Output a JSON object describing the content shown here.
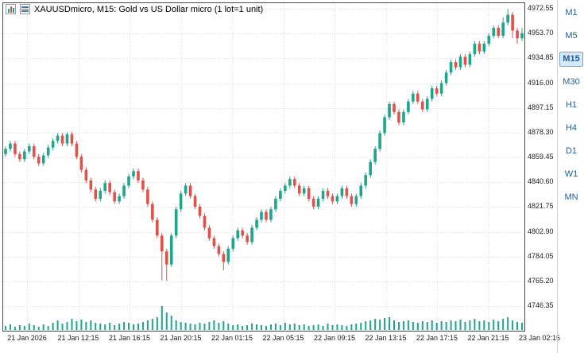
{
  "window": {
    "title": "XAUUSDmicro, M15:  Gold vs US Dollar micro (1 lot=1 unit)"
  },
  "header_icons": [
    {
      "name": "candlestick-icon"
    },
    {
      "name": "list-icon"
    }
  ],
  "timeframes": {
    "items": [
      {
        "label": "M1",
        "selected": false
      },
      {
        "label": "M5",
        "selected": false
      },
      {
        "label": "M15",
        "selected": true
      },
      {
        "label": "M30",
        "selected": false
      },
      {
        "label": "H1",
        "selected": false
      },
      {
        "label": "H4",
        "selected": false
      },
      {
        "label": "D1",
        "selected": false
      },
      {
        "label": "W1",
        "selected": false
      },
      {
        "label": "MN",
        "selected": false
      }
    ]
  },
  "chart_data": {
    "type": "candlestick",
    "symbol": "XAUUSDmicro",
    "timeframe": "M15",
    "description": "Gold vs US Dollar micro (1 lot=1 unit)",
    "y_axis": {
      "max": 4972.55,
      "min": 4746.35,
      "labels": [
        "4972.55",
        "4953.70",
        "4934.85",
        "4916.00",
        "4897.15",
        "4878.30",
        "4859.45",
        "4840.60",
        "4821.75",
        "4802.90",
        "4784.05",
        "4765.20",
        "4746.35"
      ]
    },
    "x_axis": {
      "labels": [
        "21 Jan 2026",
        "21 Jan 12:15",
        "21 Jan 16:15",
        "21 Jan 20:15",
        "22 Jan 01:15",
        "22 Jan 05:15",
        "22 Jan 09:15",
        "22 Jan 13:15",
        "22 Jan 17:15",
        "22 Jan 21:15",
        "23 Jan 02:15"
      ]
    },
    "colors": {
      "up": "#1ea58c",
      "down": "#e05249",
      "volume": "#1ea58c",
      "grid": "#dedede",
      "border": "#4a4a4a",
      "timeframe_text": "#1f5c99",
      "timeframe_selected_bg": "#d6e9f8",
      "timeframe_selected_border": "#76a9d4"
    },
    "candles": [
      [
        4862,
        4868,
        4860,
        4866
      ],
      [
        4866,
        4872,
        4864,
        4870
      ],
      [
        4870,
        4872,
        4860,
        4862
      ],
      [
        4862,
        4864,
        4856,
        4858
      ],
      [
        4858,
        4866,
        4856,
        4864
      ],
      [
        4864,
        4870,
        4862,
        4868
      ],
      [
        4868,
        4870,
        4858,
        4860
      ],
      [
        4860,
        4862,
        4853,
        4855
      ],
      [
        4855,
        4863,
        4853,
        4861
      ],
      [
        4861,
        4869,
        4859,
        4867
      ],
      [
        4867,
        4874,
        4865,
        4872
      ],
      [
        4872,
        4878,
        4870,
        4876
      ],
      [
        4876,
        4878,
        4868,
        4870
      ],
      [
        4870,
        4878.5,
        4868,
        4877
      ],
      [
        4877,
        4879,
        4868,
        4870
      ],
      [
        4870,
        4872,
        4858,
        4860
      ],
      [
        4860,
        4862,
        4848,
        4850
      ],
      [
        4850,
        4852,
        4840,
        4842
      ],
      [
        4842,
        4844,
        4833,
        4835
      ],
      [
        4835,
        4837,
        4826,
        4828
      ],
      [
        4828,
        4836,
        4826,
        4834
      ],
      [
        4834,
        4842,
        4832,
        4840
      ],
      [
        4840,
        4842,
        4831,
        4833
      ],
      [
        4833,
        4835,
        4824,
        4826
      ],
      [
        4826,
        4832,
        4824,
        4830
      ],
      [
        4830,
        4840,
        4828,
        4838
      ],
      [
        4838,
        4847,
        4836,
        4845
      ],
      [
        4845,
        4851,
        4843,
        4849
      ],
      [
        4849,
        4851,
        4840,
        4842
      ],
      [
        4842,
        4844,
        4833,
        4835
      ],
      [
        4835,
        4837,
        4822,
        4824
      ],
      [
        4824,
        4826,
        4810,
        4812
      ],
      [
        4812,
        4814,
        4798,
        4800
      ],
      [
        4800,
        4802,
        4766,
        4788
      ],
      [
        4788,
        4790,
        4765.5,
        4778
      ],
      [
        4778,
        4802,
        4776,
        4800
      ],
      [
        4800,
        4822,
        4798,
        4820
      ],
      [
        4820,
        4834,
        4818,
        4832
      ],
      [
        4832,
        4840,
        4830,
        4838
      ],
      [
        4838,
        4840,
        4828,
        4830
      ],
      [
        4830,
        4832,
        4820,
        4822
      ],
      [
        4822,
        4824,
        4813,
        4815
      ],
      [
        4815,
        4817,
        4804,
        4806
      ],
      [
        4806,
        4808,
        4796,
        4798
      ],
      [
        4798,
        4800,
        4790,
        4792
      ],
      [
        4792,
        4794,
        4784,
        4786
      ],
      [
        4786,
        4788,
        4773.5,
        4780
      ],
      [
        4780,
        4792,
        4778,
        4790
      ],
      [
        4790,
        4800,
        4788,
        4798
      ],
      [
        4798,
        4806,
        4796,
        4804
      ],
      [
        4804,
        4806,
        4798,
        4800
      ],
      [
        4800,
        4802,
        4793,
        4795
      ],
      [
        4795,
        4808,
        4793,
        4806
      ],
      [
        4806,
        4814,
        4804,
        4812
      ],
      [
        4812,
        4820,
        4810,
        4818
      ],
      [
        4818,
        4820,
        4810,
        4812
      ],
      [
        4812,
        4822,
        4810,
        4820
      ],
      [
        4820,
        4830,
        4818,
        4828
      ],
      [
        4828,
        4836,
        4826,
        4834
      ],
      [
        4834,
        4840,
        4832,
        4838
      ],
      [
        4838,
        4845,
        4836,
        4843
      ],
      [
        4843,
        4845,
        4836,
        4838
      ],
      [
        4838,
        4840,
        4830,
        4832
      ],
      [
        4832,
        4838,
        4830,
        4836
      ],
      [
        4836,
        4838,
        4826,
        4828
      ],
      [
        4828,
        4830,
        4820,
        4822
      ],
      [
        4822,
        4830,
        4820,
        4828
      ],
      [
        4828,
        4836,
        4826,
        4834
      ],
      [
        4834,
        4836,
        4828,
        4830
      ],
      [
        4830,
        4832,
        4824,
        4826
      ],
      [
        4826,
        4832,
        4824,
        4830
      ],
      [
        4830,
        4838,
        4828,
        4836
      ],
      [
        4836,
        4838,
        4828,
        4830
      ],
      [
        4830,
        4832,
        4822,
        4824
      ],
      [
        4824,
        4832,
        4822,
        4830
      ],
      [
        4830,
        4840,
        4828,
        4838
      ],
      [
        4838,
        4848,
        4836,
        4846
      ],
      [
        4846,
        4858,
        4844,
        4856
      ],
      [
        4856,
        4868,
        4854,
        4866
      ],
      [
        4866,
        4880,
        4864,
        4878
      ],
      [
        4878,
        4892,
        4876,
        4890
      ],
      [
        4890,
        4902,
        4888,
        4900
      ],
      [
        4900,
        4902,
        4892,
        4894
      ],
      [
        4894,
        4896,
        4884,
        4886
      ],
      [
        4886,
        4896,
        4884,
        4894
      ],
      [
        4894,
        4904,
        4892,
        4902
      ],
      [
        4902,
        4910,
        4900,
        4908
      ],
      [
        4908,
        4910,
        4900,
        4902
      ],
      [
        4902,
        4904,
        4894,
        4896
      ],
      [
        4896,
        4906,
        4894,
        4904
      ],
      [
        4904,
        4914,
        4902,
        4912
      ],
      [
        4912,
        4914,
        4906,
        4908
      ],
      [
        4908,
        4918,
        4906,
        4916
      ],
      [
        4916,
        4926,
        4914,
        4924
      ],
      [
        4924,
        4934,
        4922,
        4932
      ],
      [
        4932,
        4934,
        4926,
        4928
      ],
      [
        4928,
        4938,
        4926,
        4936
      ],
      [
        4936,
        4938,
        4928,
        4930
      ],
      [
        4930,
        4940,
        4928,
        4938
      ],
      [
        4938,
        4948,
        4936,
        4946
      ],
      [
        4946,
        4948,
        4938,
        4940
      ],
      [
        4940,
        4948,
        4938,
        4946
      ],
      [
        4946,
        4954,
        4944,
        4952
      ],
      [
        4952,
        4960,
        4950,
        4958
      ],
      [
        4958,
        4960,
        4950,
        4952
      ],
      [
        4952,
        4966,
        4950,
        4962
      ],
      [
        4962,
        4972.5,
        4960,
        4968
      ],
      [
        4968,
        4970,
        4950,
        4956
      ],
      [
        4956,
        4958,
        4946,
        4950
      ],
      [
        4950,
        4958,
        4948,
        4954
      ]
    ],
    "volumes": [
      5,
      7,
      4,
      6,
      5,
      8,
      6,
      4,
      7,
      5,
      9,
      12,
      8,
      10,
      14,
      11,
      13,
      10,
      12,
      9,
      8,
      7,
      9,
      6,
      8,
      10,
      9,
      7,
      8,
      10,
      12,
      14,
      16,
      30,
      22,
      18,
      12,
      10,
      9,
      8,
      7,
      9,
      8,
      10,
      12,
      9,
      11,
      8,
      6,
      7,
      5,
      6,
      8,
      7,
      6,
      5,
      7,
      8,
      6,
      9,
      7,
      8,
      6,
      7,
      5,
      6,
      7,
      5,
      8,
      6,
      7,
      6,
      5,
      7,
      8,
      9,
      11,
      12,
      14,
      13,
      15,
      16,
      12,
      10,
      11,
      12,
      10,
      9,
      11,
      10,
      12,
      9,
      11,
      10,
      12,
      11,
      13,
      10,
      12,
      14,
      11,
      12,
      10,
      13,
      11,
      14,
      16,
      12,
      10,
      9
    ]
  }
}
